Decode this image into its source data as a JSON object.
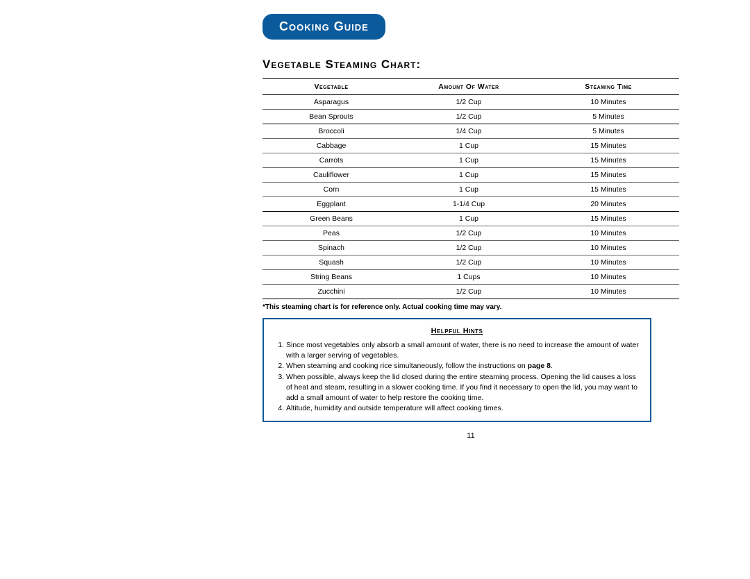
{
  "header": {
    "badge": "Cooking Guide"
  },
  "section_title": "Vegetable Steaming Chart:",
  "table": {
    "columns": [
      "Vegetable",
      "Amount Of Water",
      "Steaming Time"
    ],
    "col_widths": [
      "33%",
      "33%",
      "34%"
    ],
    "rows": [
      {
        "cells": [
          "Asparagus",
          "1/2 Cup",
          "10 Minutes"
        ],
        "thick": false
      },
      {
        "cells": [
          "Bean Sprouts",
          "1/2 Cup",
          "5 Minutes"
        ],
        "thick": true
      },
      {
        "cells": [
          "Broccoli",
          "1/4 Cup",
          "5 Minutes"
        ],
        "thick": false
      },
      {
        "cells": [
          "Cabbage",
          "1 Cup",
          "15 Minutes"
        ],
        "thick": false
      },
      {
        "cells": [
          "Carrots",
          "1 Cup",
          "15 Minutes"
        ],
        "thick": false
      },
      {
        "cells": [
          "Cauliflower",
          "1 Cup",
          "15 Minutes"
        ],
        "thick": false
      },
      {
        "cells": [
          "Corn",
          "1 Cup",
          "15 Minutes"
        ],
        "thick": false
      },
      {
        "cells": [
          "Eggplant",
          "1-1/4 Cup",
          "20 Minutes"
        ],
        "thick": true
      },
      {
        "cells": [
          "Green Beans",
          "1 Cup",
          "15 Minutes"
        ],
        "thick": false
      },
      {
        "cells": [
          "Peas",
          "1/2 Cup",
          "10 Minutes"
        ],
        "thick": false
      },
      {
        "cells": [
          "Spinach",
          "1/2 Cup",
          "10 Minutes"
        ],
        "thick": false
      },
      {
        "cells": [
          "Squash",
          "1/2 Cup",
          "10 Minutes"
        ],
        "thick": false
      },
      {
        "cells": [
          "String Beans",
          "1 Cups",
          "10 Minutes"
        ],
        "thick": false
      },
      {
        "cells": [
          "Zucchini",
          "1/2 Cup",
          "10 Minutes"
        ],
        "thick": false
      }
    ]
  },
  "footnote": "*This steaming chart is for reference only.  Actual cooking time may vary.",
  "hints": {
    "title": "Helpful Hints",
    "items": [
      {
        "text": "Since most vegetables only absorb a small amount of water, there is no need to increase the amount of water with a larger serving of vegetables."
      },
      {
        "text_pre": "When steaming and cooking rice simultaneously, follow the instructions on ",
        "pageref": "page 8",
        "text_post": "."
      },
      {
        "text": "When possible, always keep the lid closed during the entire steaming process.  Opening the lid causes a loss of heat and steam, resulting in a slower cooking time.  If you find it necessary to open the lid, you may want to add a small amount of water to help restore the cooking time."
      },
      {
        "text": "Altitude, humidity and outside temperature will affect cooking times."
      }
    ]
  },
  "page_number": "11",
  "colors": {
    "badge_bg": "#0a5a9c",
    "badge_text": "#ffffff",
    "hints_border": "#0a5a9c",
    "text": "#000000"
  }
}
